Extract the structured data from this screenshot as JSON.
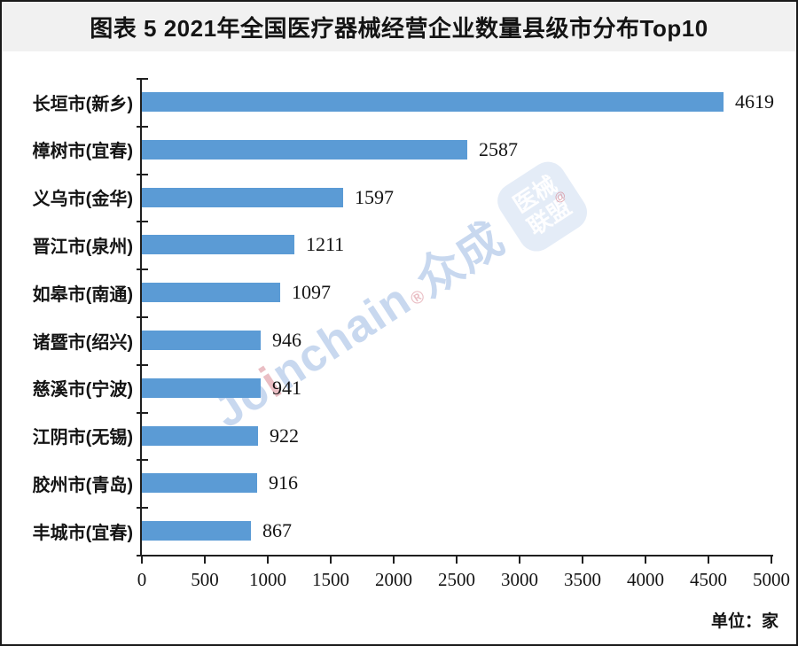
{
  "title": "图表 5 2021年全国医疗器械经营企业数量县级市分布Top10",
  "unit_label": "单位：家",
  "colors": {
    "bar": "#5B9BD5",
    "axis": "#1f1f1f",
    "title_band_bg": "#f1f1f1",
    "text": "#141414",
    "watermark_blue": "rgba(125,162,216,0.42)",
    "watermark_pink": "rgba(214,125,138,0.50)"
  },
  "watermark": {
    "full_text": "Joinchain®众成",
    "parts": [
      {
        "text": "Jo",
        "color": "rgba(125,162,216,0.42)",
        "small": false
      },
      {
        "text": "i",
        "color": "rgba(214,125,138,0.50)",
        "small": false
      },
      {
        "text": "nchain",
        "color": "rgba(125,162,216,0.42)",
        "small": false
      },
      {
        "text": "®",
        "color": "rgba(214,125,138,0.50)",
        "small": true
      },
      {
        "text": "众成",
        "color": "rgba(125,162,216,0.42)",
        "small": false
      }
    ],
    "badge": {
      "line1": "医械",
      "line2": "联盟",
      "mark": "@"
    }
  },
  "chart_data": {
    "type": "bar",
    "orientation": "horizontal",
    "title": "图表 5 2021年全国医疗器械经营企业数量县级市分布Top10",
    "categories": [
      "长垣市(新乡)",
      "樟树市(宜春)",
      "义乌市(金华)",
      "晋江市(泉州)",
      "如皋市(南通)",
      "诸暨市(绍兴)",
      "慈溪市(宁波)",
      "江阴市(无锡)",
      "胶州市(青岛)",
      "丰城市(宜春)"
    ],
    "values": [
      4619,
      2587,
      1597,
      1211,
      1097,
      946,
      941,
      922,
      916,
      867
    ],
    "x_ticks": [
      0,
      500,
      1000,
      1500,
      2000,
      2500,
      3000,
      3500,
      4000,
      4500,
      5000
    ],
    "xlim": [
      0,
      5000
    ],
    "xlabel": "",
    "ylabel": "",
    "unit": "家",
    "value_labels": true,
    "grid": false,
    "legend": false,
    "bar_color": "#5B9BD5"
  }
}
